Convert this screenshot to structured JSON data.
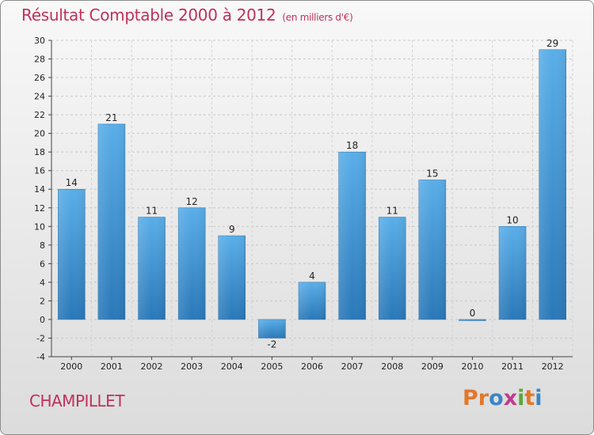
{
  "title": "Résultat Comptable 2000 à 2012",
  "subtitle": "(en milliers d'€)",
  "commune": "CHAMPILLET",
  "logo": {
    "letters": [
      "P",
      "r",
      "o",
      "x",
      "i",
      "t",
      "i"
    ]
  },
  "colors": {
    "bar": "#3a8fd4",
    "title": "#c0305a",
    "logo": [
      "#e2782a",
      "#e2782a",
      "#3a86c8",
      "#c03c8c",
      "#5aa83a",
      "#e2782a",
      "#3a86c8"
    ]
  },
  "chart_data": {
    "type": "bar",
    "categories": [
      "2000",
      "2001",
      "2002",
      "2003",
      "2004",
      "2005",
      "2006",
      "2007",
      "2008",
      "2009",
      "2010",
      "2011",
      "2012"
    ],
    "values": [
      14,
      21,
      11,
      12,
      9,
      -2,
      4,
      18,
      11,
      15,
      0,
      10,
      29
    ],
    "value_labels": [
      "14",
      "21",
      "11",
      "12",
      "9",
      "-2",
      "4",
      "18",
      "11",
      "15",
      "0",
      "10",
      "29"
    ],
    "ylim": [
      -4,
      30
    ],
    "yticks": [
      -4,
      -2,
      0,
      2,
      4,
      6,
      8,
      10,
      12,
      14,
      16,
      18,
      20,
      22,
      24,
      26,
      28,
      30
    ],
    "grid": true,
    "xlabel": "",
    "ylabel": ""
  }
}
